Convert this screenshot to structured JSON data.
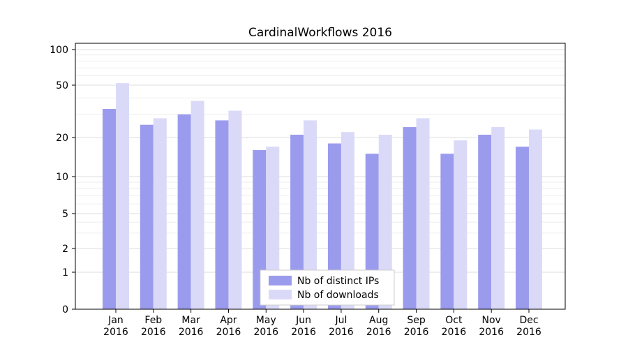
{
  "chart_data": {
    "type": "bar",
    "title": "CardinalWorkflows 2016",
    "categories": [
      "Jan",
      "Feb",
      "Mar",
      "Apr",
      "May",
      "Jun",
      "Jul",
      "Aug",
      "Sep",
      "Oct",
      "Nov",
      "Dec"
    ],
    "category_year": "2016",
    "series": [
      {
        "name": "Nb of distinct IPs",
        "color": "#9b9bee",
        "values": [
          33,
          25,
          30,
          27,
          16,
          21,
          18,
          15,
          24,
          15,
          21,
          17
        ]
      },
      {
        "name": "Nb of downloads",
        "color": "#dadaf8",
        "values": [
          52,
          28,
          38,
          32,
          17,
          27,
          22,
          21,
          28,
          19,
          24,
          23
        ]
      }
    ],
    "yticks": [
      0,
      1,
      2,
      5,
      10,
      20,
      50,
      100
    ],
    "y_scale": "symlog",
    "ylim": [
      0,
      100
    ],
    "grid": "horizontal",
    "legend_position": "lower center"
  }
}
